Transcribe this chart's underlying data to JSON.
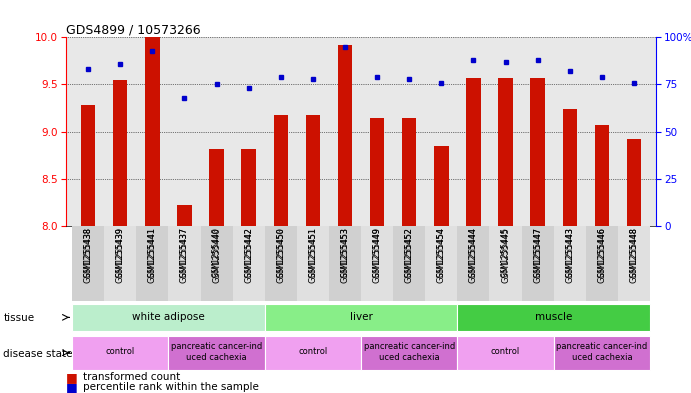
{
  "title": "GDS4899 / 10573266",
  "samples": [
    "GSM1255438",
    "GSM1255439",
    "GSM1255441",
    "GSM1255437",
    "GSM1255440",
    "GSM1255442",
    "GSM1255450",
    "GSM1255451",
    "GSM1255453",
    "GSM1255449",
    "GSM1255452",
    "GSM1255454",
    "GSM1255444",
    "GSM1255445",
    "GSM1255447",
    "GSM1255443",
    "GSM1255446",
    "GSM1255448"
  ],
  "red_values": [
    9.28,
    9.55,
    10.0,
    8.22,
    8.82,
    8.82,
    9.18,
    9.18,
    9.92,
    9.15,
    9.15,
    8.85,
    9.57,
    9.57,
    9.57,
    9.24,
    9.07,
    8.92
  ],
  "blue_values": [
    83,
    86,
    93,
    68,
    75,
    73,
    79,
    78,
    95,
    79,
    78,
    76,
    88,
    87,
    88,
    82,
    79,
    76
  ],
  "ylim_left": [
    8.0,
    10.0
  ],
  "ylim_right": [
    0,
    100
  ],
  "yticks_left": [
    8.0,
    8.5,
    9.0,
    9.5,
    10.0
  ],
  "yticks_right": [
    0,
    25,
    50,
    75,
    100
  ],
  "ytick_labels_right": [
    "0",
    "25",
    "50",
    "75",
    "100%"
  ],
  "bar_color": "#cc1100",
  "dot_color": "#0000cc",
  "plot_bg": "#e8e8e8",
  "tissue_groups": [
    {
      "label": "white adipose",
      "start": 0,
      "end": 5
    },
    {
      "label": "liver",
      "start": 6,
      "end": 11
    },
    {
      "label": "muscle",
      "start": 12,
      "end": 17
    }
  ],
  "tissue_colors": {
    "white adipose": "#bbeecc",
    "liver": "#88ee88",
    "muscle": "#44cc44"
  },
  "disease_groups": [
    {
      "label": "control",
      "start": 0,
      "end": 2,
      "type": "control"
    },
    {
      "label": "pancreatic cancer-ind\nuced cachexia",
      "start": 3,
      "end": 5,
      "type": "cancer"
    },
    {
      "label": "control",
      "start": 6,
      "end": 8,
      "type": "control"
    },
    {
      "label": "pancreatic cancer-ind\nuced cachexia",
      "start": 9,
      "end": 11,
      "type": "cancer"
    },
    {
      "label": "control",
      "start": 12,
      "end": 14,
      "type": "control"
    },
    {
      "label": "pancreatic cancer-ind\nuced cachexia",
      "start": 15,
      "end": 17,
      "type": "cancer"
    }
  ],
  "disease_colors": {
    "control": "#f0a0f0",
    "cancer": "#d070d0"
  }
}
